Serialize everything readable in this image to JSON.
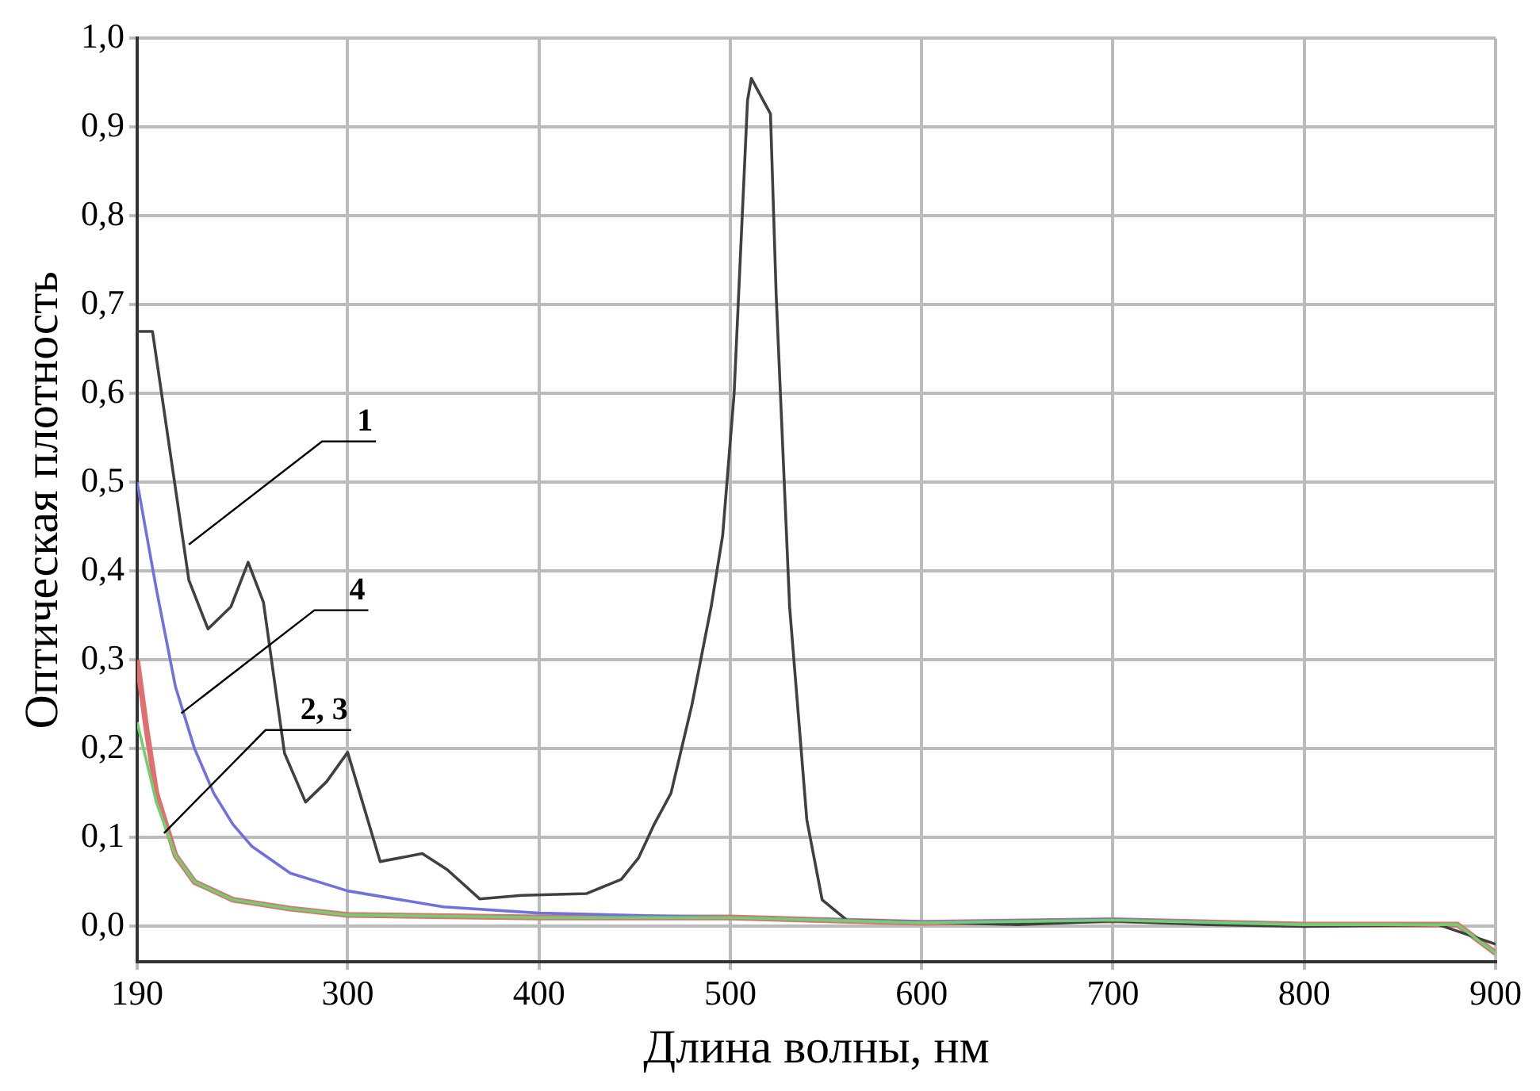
{
  "chart_data": {
    "type": "line",
    "xlabel": "Длина волны, нм",
    "ylabel": "Оптическая плотность",
    "xlim": [
      190,
      900
    ],
    "ylim": [
      -0.04,
      1.0
    ],
    "xticks": [
      190,
      300,
      400,
      500,
      600,
      700,
      800,
      900
    ],
    "yticks": [
      {
        "value": 0,
        "label": "0,0"
      },
      {
        "value": 0.1,
        "label": "0,1"
      },
      {
        "value": 0.2,
        "label": "0,2"
      },
      {
        "value": 0.3,
        "label": "0,3"
      },
      {
        "value": 0.4,
        "label": "0,4"
      },
      {
        "value": 0.5,
        "label": "0,5"
      },
      {
        "value": 0.6,
        "label": "0,6"
      },
      {
        "value": 0.7,
        "label": "0,7"
      },
      {
        "value": 0.8,
        "label": "0,8"
      },
      {
        "value": 0.9,
        "label": "0,9"
      },
      {
        "value": 1.0,
        "label": "1,0"
      }
    ],
    "grid": true,
    "legend": false,
    "marker": "none",
    "line_style": "solid",
    "series": [
      {
        "color": "#404040",
        "x": [
          190,
          198,
          217,
          227,
          239,
          248,
          256,
          267,
          278,
          289,
          300,
          317,
          339,
          352,
          369,
          391,
          425,
          443,
          452,
          460,
          469,
          480,
          490,
          496,
          502,
          509,
          511,
          521,
          524,
          531,
          540,
          548,
          561,
          600,
          650,
          700,
          750,
          800,
          870,
          900
        ],
        "values": [
          0.67,
          0.67,
          0.39,
          0.335,
          0.36,
          0.41,
          0.365,
          0.195,
          0.14,
          0.163,
          0.196,
          0.073,
          0.082,
          0.064,
          0.031,
          0.035,
          0.037,
          0.053,
          0.077,
          0.114,
          0.15,
          0.25,
          0.36,
          0.44,
          0.6,
          0.93,
          0.955,
          0.915,
          0.71,
          0.36,
          0.12,
          0.03,
          0.007,
          0.005,
          0.002,
          0.006,
          0.002,
          0.0,
          0.002,
          -0.02
        ]
      },
      {
        "color": "#7070e0",
        "x": [
          190,
          200,
          210,
          220,
          230,
          240,
          250,
          270,
          300,
          350,
          400,
          500,
          600,
          700,
          800
        ],
        "values": [
          0.5,
          0.38,
          0.27,
          0.2,
          0.15,
          0.115,
          0.09,
          0.06,
          0.04,
          0.022,
          0.015,
          0.01,
          0.005,
          0.008,
          0.002
        ]
      },
      {
        "color": "#e07070",
        "x": [
          190,
          195,
          200,
          210,
          220,
          240,
          270,
          300,
          400,
          500,
          600,
          700,
          800,
          880,
          900
        ],
        "values": [
          0.3,
          0.22,
          0.15,
          0.08,
          0.05,
          0.03,
          0.02,
          0.013,
          0.01,
          0.01,
          0.004,
          0.007,
          0.002,
          0.002,
          -0.03
        ]
      },
      {
        "color": "#70d070",
        "x": [
          190,
          200,
          210,
          220,
          240,
          270,
          300,
          400,
          500,
          600,
          700,
          800,
          880,
          900
        ],
        "values": [
          0.23,
          0.14,
          0.08,
          0.05,
          0.03,
          0.02,
          0.013,
          0.01,
          0.01,
          0.004,
          0.007,
          0.002,
          0.002,
          -0.03
        ]
      }
    ],
    "annotations": [
      {
        "text": "1",
        "x": 217,
        "y": 0.43
      },
      {
        "text": "4",
        "x": 213,
        "y": 0.24
      },
      {
        "text": "2, 3",
        "x": 204,
        "y": 0.105
      }
    ]
  }
}
